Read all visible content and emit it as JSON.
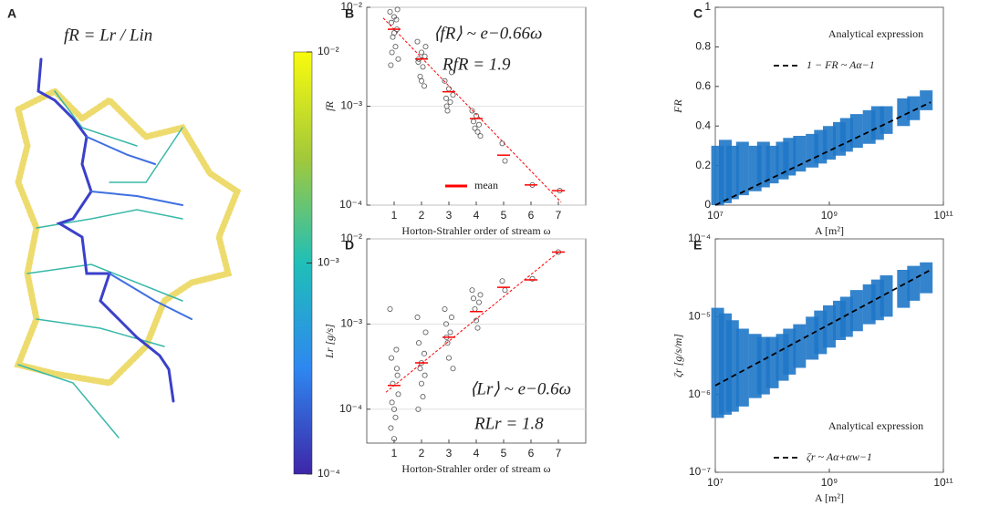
{
  "chart_data": [
    {
      "type": "map",
      "letter": "A",
      "title": "fR = Lr / Lin",
      "colorbar": {
        "clim": [
          0.0001,
          0.01
        ],
        "log": true,
        "colors": [
          "#3e26a8",
          "#2e87f0",
          "#1fbfb8",
          "#a3c93a",
          "#f9fb0e"
        ],
        "ticks": [
          {
            "value": 0.01,
            "label": "10⁻²"
          },
          {
            "value": 0.001,
            "label": "10⁻³"
          },
          {
            "value": 0.0001,
            "label": "10⁻⁴"
          }
        ]
      }
    },
    {
      "type": "scatter",
      "letter": "B",
      "xlabel": "Horton-Strahler order of stream ω",
      "ylabel": "fR",
      "xlim": [
        0,
        8
      ],
      "xticks": [
        1,
        2,
        3,
        4,
        5,
        6,
        7
      ],
      "ylim": [
        0.0001,
        0.01
      ],
      "log_y": true,
      "grid": true,
      "yticks": [
        {
          "value": 0.0001,
          "label": "10⁻⁴"
        },
        {
          "value": 0.001,
          "label": "10⁻³"
        },
        {
          "value": 0.01,
          "label": "10⁻²"
        }
      ],
      "points": {
        "color": "#555555",
        "x": [
          0.85,
          0.9,
          0.95,
          1.0,
          1.05,
          1.1,
          1.15,
          0.88,
          1.12,
          1.0,
          0.92,
          1.08,
          1.85,
          1.9,
          1.95,
          2.0,
          2.05,
          2.1,
          2.15,
          1.88,
          2.12,
          2.0,
          2.85,
          2.9,
          2.95,
          3.0,
          3.05,
          3.1,
          3.15,
          2.92,
          3.85,
          3.9,
          3.95,
          4.0,
          4.05,
          4.1,
          4.15,
          4.95,
          5.05,
          6.05,
          7.05
        ],
        "values": [
          0.009,
          0.007,
          0.005,
          0.008,
          0.004,
          0.006,
          0.003,
          0.0026,
          0.0095,
          0.0055,
          0.0035,
          0.0075,
          0.0045,
          0.003,
          0.002,
          0.0035,
          0.0025,
          0.0016,
          0.004,
          0.0028,
          0.0032,
          0.0018,
          0.0018,
          0.0012,
          0.0009,
          0.0015,
          0.0011,
          0.0022,
          0.0013,
          0.001,
          0.0009,
          0.0007,
          0.0006,
          0.0008,
          0.00055,
          0.00065,
          0.0005,
          0.00042,
          0.00028,
          0.00016,
          0.00014
        ]
      },
      "means": {
        "name": "mean",
        "color": "#ff0000",
        "x": [
          1,
          2,
          3,
          4,
          5,
          6,
          7
        ],
        "values": [
          0.006,
          0.003,
          0.0014,
          0.00075,
          0.00032,
          0.00016,
          0.00014
        ]
      },
      "fit": {
        "color": "#ff0000",
        "x": [
          0.6,
          7.1
        ],
        "values": [
          0.0078,
          0.000107
        ]
      },
      "annotations": [
        "⟨fR⟩ ~ e−0.66ω",
        "RfR = 1.9"
      ]
    },
    {
      "type": "band",
      "letter": "C",
      "xlabel": "A [m²]",
      "ylabel": "FR",
      "xlim": [
        10000000,
        100000000000
      ],
      "log_x": true,
      "ylim": [
        0,
        1
      ],
      "xticks": [
        {
          "value": 10000000,
          "label": "10⁷"
        },
        {
          "value": 1000000000,
          "label": "10⁹"
        },
        {
          "value": 100000000000,
          "label": "10¹¹"
        }
      ],
      "yticks": [
        0,
        0.2,
        0.4,
        0.6,
        0.8,
        1
      ],
      "band": {
        "color": "#1f77c8",
        "x": [
          11000000,
          15000000,
          20000000,
          30000000,
          50000000,
          70000000,
          100000000,
          150000000,
          200000000,
          300000000,
          500000000,
          700000000,
          1000000000,
          1500000000,
          2000000000,
          3000000000,
          5000000000,
          7000000000,
          10000000000,
          20000000000,
          30000000000,
          50000000000
        ],
        "upper": [
          0.3,
          0.33,
          0.3,
          0.32,
          0.3,
          0.32,
          0.3,
          0.32,
          0.34,
          0.35,
          0.36,
          0.38,
          0.4,
          0.42,
          0.44,
          0.46,
          0.48,
          0.5,
          0.5,
          0.54,
          0.55,
          0.58
        ],
        "lower": [
          0,
          0.01,
          0.03,
          0.05,
          0.07,
          0.09,
          0.11,
          0.13,
          0.15,
          0.17,
          0.19,
          0.21,
          0.23,
          0.25,
          0.27,
          0.29,
          0.31,
          0.33,
          0.36,
          0.4,
          0.43,
          0.48
        ]
      },
      "analytical": {
        "legend_title": "Analytical expression",
        "name": "1 − FR ~ Aα−1",
        "color": "#000000",
        "x": [
          10000000,
          60000000000
        ],
        "values": [
          0,
          0.52
        ]
      }
    },
    {
      "type": "scatter",
      "letter": "D",
      "xlabel": "Horton-Strahler order of stream ω",
      "ylabel": "Lr [g/s]",
      "xlim": [
        0,
        8
      ],
      "xticks": [
        1,
        2,
        3,
        4,
        5,
        6,
        7
      ],
      "ylim": [
        4e-05,
        0.01
      ],
      "log_y": true,
      "grid": true,
      "yticks": [
        {
          "value": 0.0001,
          "label": "10⁻⁴"
        },
        {
          "value": 0.001,
          "label": "10⁻³"
        },
        {
          "value": 0.01,
          "label": "10⁻²"
        }
      ],
      "points": {
        "color": "#555555",
        "x": [
          0.85,
          0.9,
          0.95,
          1.0,
          1.05,
          1.1,
          1.15,
          0.88,
          1.12,
          1.0,
          0.92,
          1.08,
          1.85,
          1.9,
          1.95,
          2.0,
          2.05,
          2.1,
          2.15,
          2.0,
          1.88,
          2.12,
          2.85,
          2.9,
          2.95,
          3.0,
          3.05,
          3.1,
          3.15,
          2.92,
          3.85,
          3.9,
          3.95,
          4.0,
          4.05,
          4.1,
          4.15,
          4.95,
          5.05,
          6.05,
          7.0
        ],
        "values": [
          0.0015,
          0.0004,
          0.0002,
          0.0001,
          8e-05,
          0.0003,
          0.00015,
          6e-05,
          0.00025,
          4.5e-05,
          0.00012,
          0.0005,
          0.0012,
          0.0006,
          0.0003,
          0.0002,
          0.00014,
          0.00045,
          0.0008,
          0.00035,
          0.0001,
          0.00025,
          0.0015,
          0.001,
          0.0006,
          0.0004,
          0.0008,
          0.0012,
          0.0003,
          0.0007,
          0.0025,
          0.002,
          0.0015,
          0.0011,
          0.0009,
          0.0018,
          0.0022,
          0.0032,
          0.0025,
          0.0034,
          0.007
        ]
      },
      "means": {
        "color": "#ff0000",
        "x": [
          1,
          2,
          3,
          4,
          5,
          6,
          7
        ],
        "values": [
          0.00019,
          0.00035,
          0.0007,
          0.0014,
          0.0027,
          0.0033,
          0.007
        ]
      },
      "fit": {
        "color": "#ff0000",
        "x": [
          0.7,
          7
        ],
        "values": [
          0.000158,
          0.00695
        ]
      },
      "annotations": [
        "⟨Lr⟩ ~ e−0.6ω",
        "RLr = 1.8"
      ]
    },
    {
      "type": "band",
      "letter": "E",
      "xlabel": "A [m²]",
      "ylabel": "ζr [g/s/m]",
      "xlim": [
        10000000,
        100000000000
      ],
      "log_x": true,
      "ylim": [
        1e-07,
        0.0001
      ],
      "log_y": true,
      "xticks": [
        {
          "value": 10000000,
          "label": "10⁷"
        },
        {
          "value": 1000000000,
          "label": "10⁹"
        },
        {
          "value": 100000000000,
          "label": "10¹¹"
        }
      ],
      "yticks": [
        {
          "value": 1e-07,
          "label": "10⁻⁷"
        },
        {
          "value": 1e-06,
          "label": "10⁻⁶"
        },
        {
          "value": 1e-05,
          "label": "10⁻⁵"
        },
        {
          "value": 0.0001,
          "label": "10⁻⁴"
        }
      ],
      "band": {
        "color": "#1f77c8",
        "x": [
          11000000,
          15000000,
          20000000,
          30000000,
          50000000,
          70000000,
          100000000,
          150000000,
          200000000,
          300000000,
          500000000,
          700000000,
          1000000000,
          1500000000,
          2000000000,
          3000000000,
          5000000000,
          7000000000,
          10000000000,
          20000000000,
          30000000000,
          50000000000
        ],
        "upper": [
          1.3e-05,
          1.1e-05,
          9e-06,
          7e-06,
          6e-06,
          5.5e-06,
          5.5e-06,
          6e-06,
          7e-06,
          8e-06,
          1e-05,
          1.2e-05,
          1.4e-05,
          1.6e-05,
          1.8e-05,
          2.2e-05,
          2.6e-05,
          3e-05,
          3.4e-05,
          4e-05,
          4.5e-05,
          5e-05
        ],
        "lower": [
          5e-07,
          5.5e-07,
          6e-07,
          7e-07,
          9e-07,
          1e-06,
          1.2e-06,
          1.5e-06,
          1.8e-06,
          2.2e-06,
          2.8e-06,
          3.3e-06,
          4e-06,
          5e-06,
          5.5e-06,
          6.5e-06,
          8e-06,
          9e-06,
          1e-05,
          1.3e-05,
          1.6e-05,
          2e-05
        ]
      },
      "analytical": {
        "legend_title": "Analytical expression",
        "name": "ζr ~ Aα+αw−1",
        "color": "#000000",
        "x": [
          10000000,
          60000000000
        ],
        "values": [
          1.3e-06,
          4e-05
        ]
      }
    }
  ]
}
